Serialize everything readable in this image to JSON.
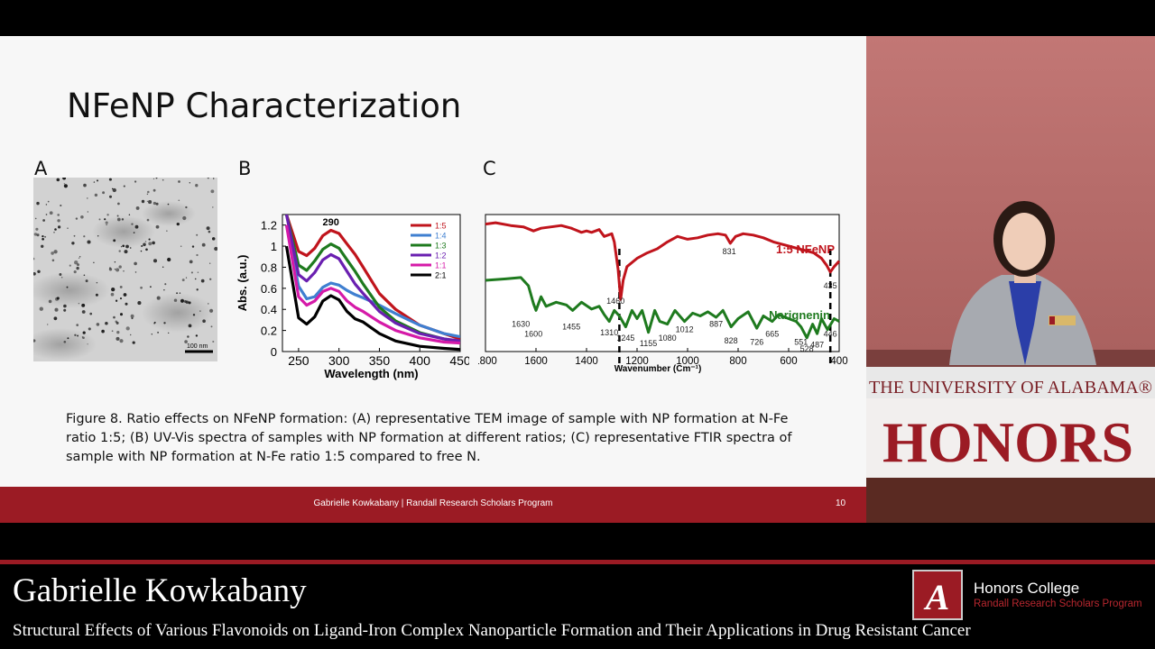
{
  "slide": {
    "title": "NFeNP Characterization",
    "panel_a_letter": "A",
    "panel_b_letter": "B",
    "panel_c_letter": "C",
    "tem_scale_label": "100 nm",
    "caption": "Figure 8. Ratio effects on NFeNP formation: (A) representative TEM image of sample with NP formation at N-Fe ratio 1:5; (B) UV-Vis spectra of samples with NP formation at different ratios; (C) representative FTIR spectra of sample with NP formation at N-Fe ratio 1:5 compared to free N.",
    "footer_credit": "Gabrielle Kowkabany | Randall Research Scholars Program",
    "slide_number": "10"
  },
  "chart_data": [
    {
      "type": "line",
      "panel": "B",
      "xlabel": "Wavelength (nm)",
      "ylabel": "Abs. (a.u.)",
      "xlim": [
        230,
        450
      ],
      "ylim": [
        0,
        1.3
      ],
      "x_ticks": [
        "250",
        "300",
        "350",
        "400",
        "450"
      ],
      "y_ticks": [
        "0",
        "0.2",
        "0.4",
        "0.6",
        "0.8",
        "1",
        "1.2"
      ],
      "peak_label": "290",
      "legend_position": "top-right",
      "x": [
        235,
        250,
        260,
        270,
        280,
        290,
        300,
        310,
        320,
        330,
        350,
        370,
        400,
        430,
        450
      ],
      "series": [
        {
          "name": "1:5",
          "color": "#c0141c",
          "values": [
            1.3,
            0.95,
            0.91,
            0.98,
            1.1,
            1.15,
            1.12,
            1.02,
            0.92,
            0.8,
            0.55,
            0.4,
            0.25,
            0.17,
            0.12
          ]
        },
        {
          "name": "1:4",
          "color": "#3f7fd0",
          "values": [
            1.2,
            0.62,
            0.5,
            0.52,
            0.61,
            0.65,
            0.63,
            0.58,
            0.54,
            0.51,
            0.44,
            0.36,
            0.25,
            0.17,
            0.14
          ]
        },
        {
          "name": "1:3",
          "color": "#1e7a1e",
          "values": [
            1.3,
            0.82,
            0.77,
            0.86,
            0.97,
            1.02,
            0.98,
            0.87,
            0.76,
            0.64,
            0.42,
            0.29,
            0.18,
            0.12,
            0.09
          ]
        },
        {
          "name": "1:2",
          "color": "#6a1fb0",
          "values": [
            1.3,
            0.73,
            0.67,
            0.75,
            0.87,
            0.92,
            0.88,
            0.76,
            0.64,
            0.55,
            0.38,
            0.27,
            0.17,
            0.12,
            0.1
          ]
        },
        {
          "name": "1:1",
          "color": "#d51aa8",
          "values": [
            1.2,
            0.52,
            0.44,
            0.48,
            0.57,
            0.6,
            0.57,
            0.48,
            0.42,
            0.38,
            0.28,
            0.2,
            0.13,
            0.09,
            0.08
          ]
        },
        {
          "name": "2:1",
          "color": "#000000",
          "values": [
            1.0,
            0.32,
            0.26,
            0.33,
            0.48,
            0.53,
            0.49,
            0.38,
            0.31,
            0.28,
            0.17,
            0.1,
            0.05,
            0.03,
            0.02
          ]
        }
      ]
    },
    {
      "type": "line",
      "panel": "C",
      "xlabel": "Wavenumber (Cm⁻¹)",
      "xlim": [
        1800,
        400
      ],
      "x_reversed": true,
      "x_ticks": [
        "1800",
        "1600",
        "1400",
        "1200",
        "1000",
        "800",
        "600",
        "400"
      ],
      "dashed_markers": [
        1270,
        435
      ],
      "series": [
        {
          "name": "1:5 NFeNP",
          "color": "#c0141c",
          "x": [
            1800,
            1760,
            1700,
            1650,
            1610,
            1580,
            1540,
            1500,
            1460,
            1420,
            1400,
            1380,
            1350,
            1330,
            1300,
            1290,
            1275,
            1265,
            1255,
            1240,
            1200,
            1160,
            1120,
            1080,
            1040,
            1000,
            960,
            920,
            880,
            850,
            831,
            810,
            780,
            740,
            700,
            660,
            620,
            580,
            540,
            500,
            470,
            450,
            435,
            420,
            400
          ],
          "values": [
            93,
            94,
            92,
            91,
            88,
            90,
            91,
            92,
            90,
            87,
            88,
            87,
            89,
            84,
            86,
            80,
            60,
            38,
            52,
            62,
            68,
            72,
            75,
            80,
            84,
            82,
            83,
            85,
            86,
            85,
            79,
            84,
            86,
            85,
            83,
            80,
            78,
            76,
            74,
            72,
            68,
            63,
            58,
            62,
            66
          ]
        },
        {
          "name": "Narignenin",
          "color": "#1e7a1e",
          "x": [
            1800,
            1720,
            1660,
            1630,
            1610,
            1600,
            1580,
            1560,
            1520,
            1480,
            1455,
            1420,
            1380,
            1350,
            1330,
            1310,
            1290,
            1270,
            1245,
            1220,
            1200,
            1180,
            1155,
            1130,
            1110,
            1080,
            1050,
            1012,
            980,
            950,
            920,
            887,
            860,
            828,
            800,
            760,
            726,
            700,
            665,
            640,
            600,
            570,
            551,
            528,
            505,
            487,
            470,
            446,
            420,
            400
          ],
          "values": [
            52,
            53,
            54,
            48,
            35,
            30,
            40,
            33,
            36,
            34,
            30,
            36,
            31,
            33,
            27,
            22,
            30,
            26,
            18,
            30,
            24,
            30,
            14,
            30,
            22,
            20,
            30,
            22,
            28,
            26,
            29,
            25,
            30,
            18,
            24,
            29,
            17,
            26,
            22,
            27,
            24,
            22,
            18,
            10,
            20,
            13,
            24,
            16,
            24,
            22
          ]
        }
      ],
      "peak_labels": [
        {
          "text": "1460",
          "x": 1285,
          "y": 35
        },
        {
          "text": "831",
          "x": 835,
          "y": 71
        },
        {
          "text": "435",
          "x": 435,
          "y": 46
        },
        {
          "text": "1630",
          "x": 1660,
          "y": 18
        },
        {
          "text": "1600",
          "x": 1610,
          "y": 11
        },
        {
          "text": "1455",
          "x": 1460,
          "y": 16
        },
        {
          "text": "1310",
          "x": 1310,
          "y": 12
        },
        {
          "text": "1245",
          "x": 1245,
          "y": 8
        },
        {
          "text": "1155",
          "x": 1155,
          "y": 4
        },
        {
          "text": "1080",
          "x": 1080,
          "y": 8
        },
        {
          "text": "1012",
          "x": 1012,
          "y": 14
        },
        {
          "text": "887",
          "x": 887,
          "y": 18
        },
        {
          "text": "828",
          "x": 828,
          "y": 6
        },
        {
          "text": "726",
          "x": 726,
          "y": 5
        },
        {
          "text": "665",
          "x": 665,
          "y": 11
        },
        {
          "text": "551",
          "x": 551,
          "y": 5
        },
        {
          "text": "528",
          "x": 528,
          "y": 0
        },
        {
          "text": "487",
          "x": 487,
          "y": 3
        },
        {
          "text": "446",
          "x": 435,
          "y": 11
        }
      ]
    }
  ],
  "speaker_view": {
    "banner_text": "THE UNIVERSITY OF ALABAMA®",
    "podium_word": "HONORS"
  },
  "lower_third": {
    "presenter_name": "Gabrielle Kowkabany",
    "talk_title": "Structural Effects of Various Flavonoids on Ligand-Iron Complex Nanoparticle Formation and Their Applications in Drug Resistant Cancer",
    "logo_letter": "A",
    "college_name": "Honors College",
    "program_name": "Randall Research Scholars Program"
  },
  "colors": {
    "crimson": "#9b1b24",
    "slide_background": "#f7f7f7"
  }
}
